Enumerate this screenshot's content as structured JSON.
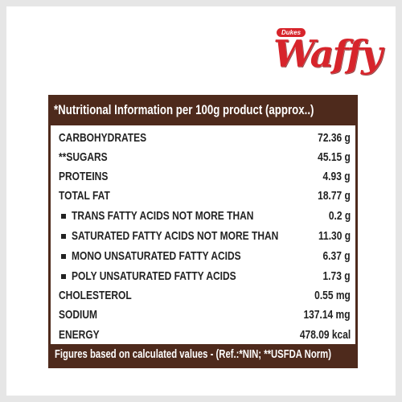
{
  "header": {
    "brand": "Dukes",
    "logo": "Waffy"
  },
  "table": {
    "title": "*Nutritional Information per 100g product (approx..)",
    "rows": [
      [
        "CARBOHYDRATES",
        "72.36 g"
      ],
      [
        "**SUGARS",
        "45.15 g"
      ],
      [
        "PROTEINS",
        "4.93 g"
      ],
      [
        "TOTAL FAT",
        "18.77 g"
      ],
      [
        "TRANS FATTY ACIDS NOT MORE THAN",
        "0.2 g"
      ],
      [
        "SATURATED FATTY ACIDS NOT MORE THAN",
        "11.30 g"
      ],
      [
        "MONO UNSATURATED FATTY ACIDS",
        "6.37 g"
      ],
      [
        "POLY UNSATURATED FATTY ACIDS",
        "1.73 g"
      ],
      [
        "CHOLESTEROL",
        "0.55 mg"
      ],
      [
        "SODIUM",
        "137.14 mg"
      ],
      [
        "ENERGY",
        "478.09 kcal"
      ]
    ],
    "footer": "Figures based on calculated values - (Ref.:*NIN; **USFDA Norm)"
  }
}
